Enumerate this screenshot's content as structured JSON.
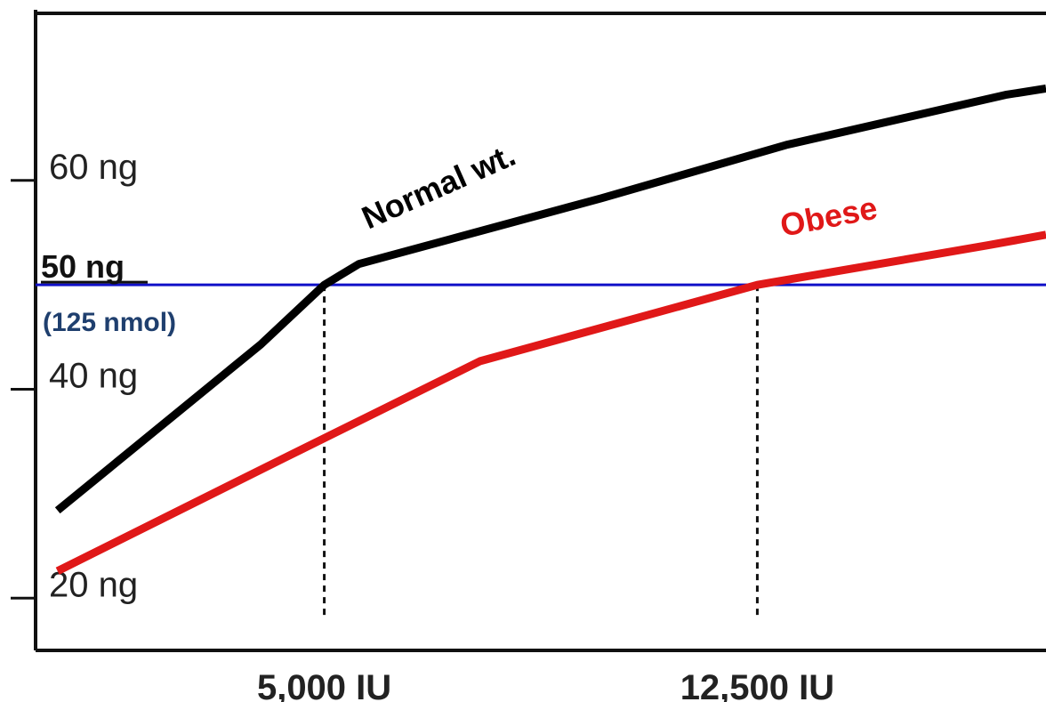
{
  "chart_data": {
    "type": "line",
    "title": "",
    "xlabel": "",
    "ylabel": "",
    "xlim": [
      0,
      17500
    ],
    "ylim": [
      15,
      76
    ],
    "grid": false,
    "y_ticks": [
      {
        "value": 20,
        "label": "20 ng"
      },
      {
        "value": 40,
        "label": "40 ng"
      },
      {
        "value": 60,
        "label": "60 ng"
      }
    ],
    "x_ticks": [
      {
        "value": 5000,
        "label": "5,000 IU"
      },
      {
        "value": 12500,
        "label": "12,500 IU"
      }
    ],
    "reference_line": {
      "value": 50,
      "label": "50 ng",
      "sublabel": "(125 nmol)",
      "color": "#1010c8"
    },
    "drop_lines": [
      5000,
      12500
    ],
    "series": [
      {
        "name": "Normal wt.",
        "color": "#000000",
        "points": [
          [
            380,
            28.4
          ],
          [
            3900,
            44.3
          ],
          [
            5000,
            50.0
          ],
          [
            5600,
            52.0
          ],
          [
            9800,
            58.3
          ],
          [
            13000,
            63.4
          ],
          [
            16800,
            68.2
          ],
          [
            17500,
            68.8
          ]
        ]
      },
      {
        "name": "Obese",
        "color": "#e01818",
        "points": [
          [
            380,
            22.6
          ],
          [
            4300,
            33.4
          ],
          [
            7700,
            42.7
          ],
          [
            12500,
            50.0
          ],
          [
            16500,
            53.8
          ],
          [
            17500,
            54.8
          ]
        ]
      }
    ]
  }
}
